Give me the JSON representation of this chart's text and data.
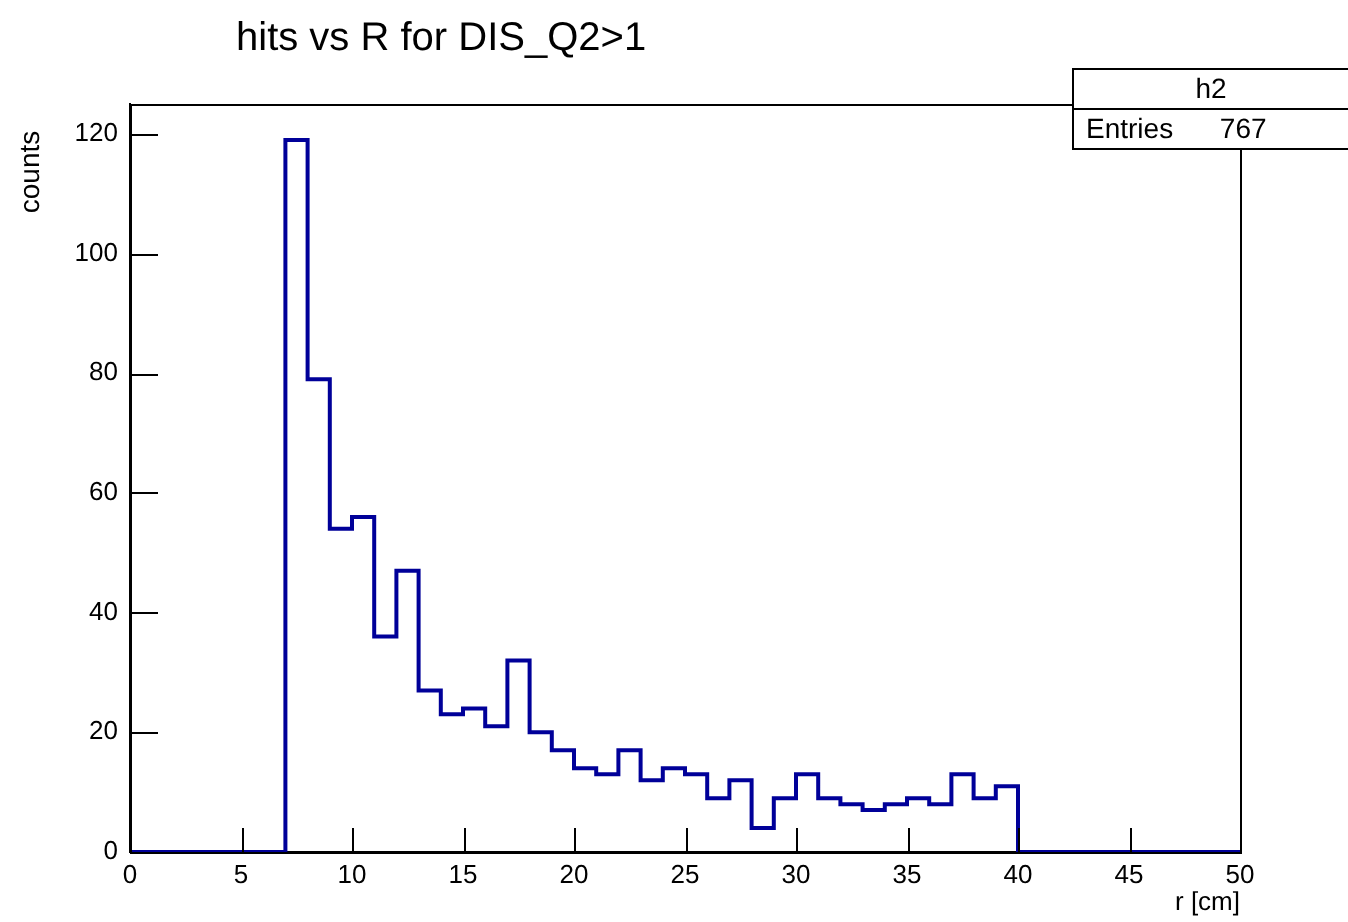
{
  "chart_data": {
    "type": "histogram",
    "title": "hits vs R for DIS_Q2>1",
    "xlabel": "r [cm]",
    "ylabel": "counts",
    "legend_title": "h2",
    "annotations": [
      "Entries      767"
    ],
    "bins": [
      0,
      1,
      2,
      3,
      4,
      5,
      6,
      7,
      8,
      9,
      10,
      11,
      12,
      13,
      14,
      15,
      16,
      17,
      18,
      19,
      20,
      21,
      22,
      23,
      24,
      25,
      26,
      27,
      28,
      29,
      30,
      31,
      32,
      33,
      34,
      35,
      36,
      37,
      38,
      39,
      40,
      41,
      42,
      43,
      44,
      45,
      46,
      47,
      48,
      49,
      50
    ],
    "values": [
      0,
      0,
      0,
      0,
      0,
      0,
      0,
      119,
      79,
      54,
      56,
      36,
      47,
      27,
      23,
      24,
      21,
      32,
      20,
      17,
      14,
      13,
      17,
      12,
      14,
      13,
      9,
      12,
      4,
      9,
      13,
      9,
      8,
      7,
      8,
      9,
      8,
      13,
      9,
      11,
      0,
      0,
      0,
      0,
      0,
      0,
      0,
      0,
      0,
      0
    ],
    "color": "#000099",
    "xlim": [
      0,
      50
    ],
    "xticks": [
      0,
      5,
      10,
      15,
      20,
      25,
      30,
      35,
      40,
      45,
      50
    ],
    "ylim": [
      0,
      125
    ],
    "yticks": [
      0,
      20,
      40,
      60,
      80,
      100,
      120
    ],
    "grid": false,
    "legend": false
  }
}
